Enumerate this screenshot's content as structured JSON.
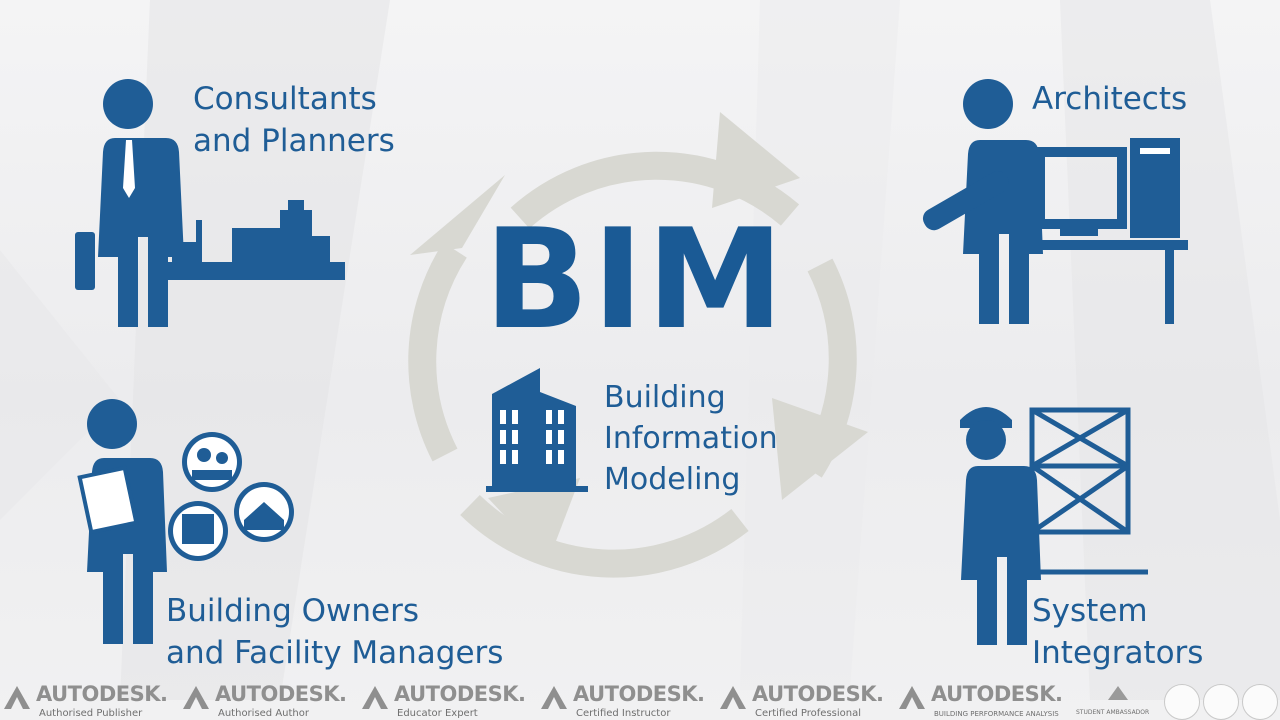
{
  "diagram": {
    "center_title": "BIM",
    "center_subtitle": [
      "Building",
      "Information",
      "Modeling"
    ],
    "roles": {
      "consultants": [
        "Consultants",
        "and Planners"
      ],
      "architects": "Architects",
      "owners": [
        "Building Owners",
        "and Facility Managers"
      ],
      "integrators": [
        "System",
        "Integrators"
      ]
    },
    "colors": {
      "primary": "#1f5d96",
      "cycle_arrows": "#d9d9d3"
    }
  },
  "footer": {
    "badges": [
      {
        "brand": "AUTODESK.",
        "cert": "Authorised Publisher"
      },
      {
        "brand": "AUTODESK.",
        "cert": "Authorised Author"
      },
      {
        "brand": "AUTODESK.",
        "cert": "Educator Expert"
      },
      {
        "brand": "AUTODESK.",
        "cert": "Certified Instructor"
      },
      {
        "brand": "AUTODESK.",
        "cert": "Certified Professional"
      },
      {
        "brand": "AUTODESK.",
        "cert": "BUILDING PERFORMANCE ANALYSIS"
      }
    ],
    "ambassador": "STUDENT AMBASSADOR"
  }
}
